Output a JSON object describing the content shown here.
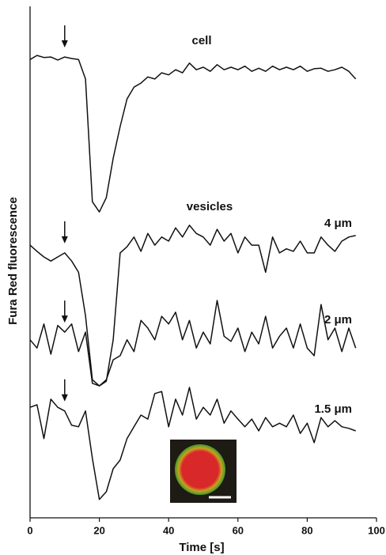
{
  "chart_data": {
    "type": "line",
    "xlabel": "Time [s]",
    "ylabel": "Fura Red fluorescence",
    "annotation": "vesicles",
    "xlim": [
      0,
      100
    ],
    "xticks": [
      0,
      20,
      40,
      60,
      80,
      100
    ],
    "ylim": [
      0,
      100
    ],
    "x": [
      0,
      2,
      4,
      6,
      8,
      10,
      12,
      14,
      16,
      18,
      20,
      22,
      24,
      26,
      28,
      30,
      32,
      34,
      36,
      38,
      40,
      42,
      44,
      46,
      48,
      50,
      52,
      54,
      56,
      58,
      60,
      62,
      64,
      66,
      68,
      70,
      72,
      74,
      76,
      78,
      80,
      82,
      84,
      86,
      88,
      90,
      92,
      94
    ],
    "series": [
      {
        "name": "cell",
        "color": "#111111",
        "values": [
          89.6,
          90.4,
          90.0,
          90.1,
          89.5,
          90.1,
          89.8,
          89.6,
          85.8,
          61.8,
          59.8,
          62.6,
          70.3,
          76.5,
          81.9,
          84.2,
          85.0,
          86.2,
          85.8,
          87.0,
          86.6,
          87.6,
          87.0,
          88.9,
          87.6,
          88.1,
          87.3,
          88.6,
          87.6,
          88.1,
          87.6,
          88.3,
          87.3,
          87.9,
          87.3,
          88.3,
          87.6,
          88.1,
          87.6,
          88.3,
          87.3,
          87.8,
          87.9,
          87.3,
          87.6,
          88.1,
          87.3,
          85.8
        ]
      },
      {
        "name": "4 μm",
        "color": "#111111",
        "values": [
          53.3,
          52.1,
          51.0,
          50.2,
          51.0,
          51.8,
          50.2,
          48.0,
          39.5,
          27.0,
          25.8,
          26.7,
          34.8,
          51.8,
          53.0,
          54.9,
          52.1,
          55.6,
          53.3,
          54.9,
          54.1,
          56.7,
          54.9,
          57.2,
          55.6,
          54.9,
          53.3,
          56.4,
          54.1,
          55.6,
          51.8,
          54.9,
          53.3,
          53.3,
          48.0,
          54.9,
          51.8,
          52.6,
          52.1,
          54.1,
          51.8,
          51.8,
          54.9,
          53.3,
          52.1,
          54.1,
          54.9,
          55.2
        ]
      },
      {
        "name": "2 μm",
        "color": "#111111",
        "values": [
          34.8,
          33.2,
          37.9,
          32.0,
          37.6,
          36.3,
          37.9,
          32.5,
          36.3,
          26.3,
          25.8,
          27.0,
          30.9,
          31.7,
          34.8,
          32.5,
          38.6,
          37.1,
          34.8,
          39.4,
          37.9,
          40.2,
          34.8,
          38.6,
          33.2,
          36.3,
          34.0,
          42.5,
          35.5,
          34.5,
          37.1,
          32.5,
          36.3,
          34.0,
          39.4,
          33.2,
          35.5,
          37.1,
          33.2,
          37.9,
          33.2,
          31.7,
          41.7,
          34.8,
          37.1,
          32.5,
          37.1,
          33.2
        ]
      },
      {
        "name": "1.5 μm",
        "color": "#111111",
        "values": [
          21.6,
          22.1,
          15.5,
          23.2,
          21.6,
          20.9,
          18.1,
          17.8,
          20.9,
          11.6,
          3.6,
          5.1,
          9.6,
          11.3,
          15.5,
          17.8,
          20.1,
          19.3,
          24.3,
          24.7,
          17.8,
          23.2,
          20.1,
          25.5,
          19.3,
          21.6,
          20.1,
          23.2,
          18.5,
          20.9,
          19.3,
          17.8,
          19.3,
          17.0,
          19.6,
          17.8,
          18.5,
          17.8,
          20.1,
          16.5,
          18.5,
          14.7,
          19.6,
          17.8,
          19.0,
          17.8,
          17.5,
          17.0
        ]
      }
    ]
  }
}
